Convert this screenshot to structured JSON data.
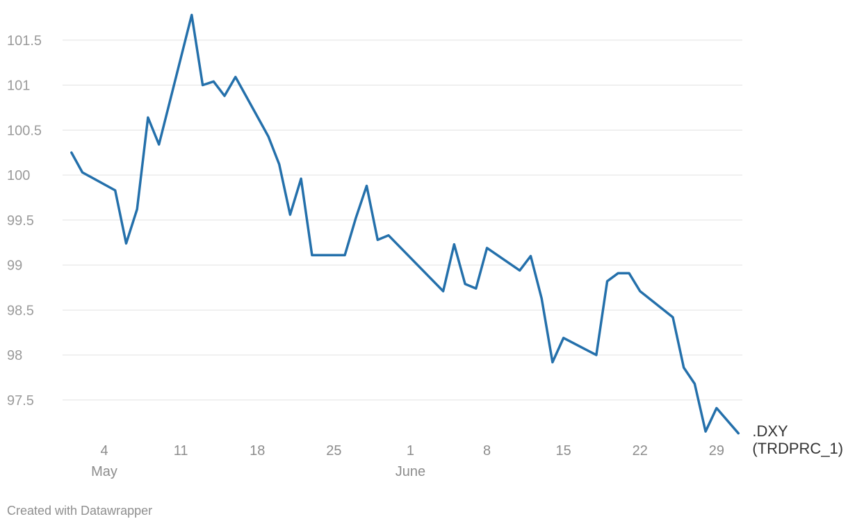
{
  "footer": "Created with Datawrapper",
  "chart_data": {
    "type": "line",
    "title": "",
    "xlabel": "",
    "ylabel": "",
    "grid": true,
    "ylim": [
      97.15,
      101.8
    ],
    "xlim": [
      "2020-05-01",
      "2020-06-30"
    ],
    "y_ticks": [
      "97.5",
      "98",
      "98.5",
      "99",
      "99.5",
      "100",
      "100.5",
      "101",
      "101.5"
    ],
    "x_ticks": [
      {
        "date": "2020-05-04",
        "label": "4",
        "month": "May"
      },
      {
        "date": "2020-05-11",
        "label": "11"
      },
      {
        "date": "2020-05-18",
        "label": "18"
      },
      {
        "date": "2020-05-25",
        "label": "25"
      },
      {
        "date": "2020-06-01",
        "label": "1",
        "month": "June"
      },
      {
        "date": "2020-06-08",
        "label": "8"
      },
      {
        "date": "2020-06-15",
        "label": "15"
      },
      {
        "date": "2020-06-22",
        "label": "22"
      },
      {
        "date": "2020-06-29",
        "label": "29"
      }
    ],
    "series": [
      {
        "name": ".DXY (TRDPRC_1)",
        "label_lines": [
          ".DXY",
          "(TRDPRC_1)"
        ],
        "color": "#2470ab",
        "x": [
          "2020-05-01",
          "2020-05-02",
          "2020-05-05",
          "2020-05-06",
          "2020-05-07",
          "2020-05-08",
          "2020-05-09",
          "2020-05-12",
          "2020-05-13",
          "2020-05-14",
          "2020-05-15",
          "2020-05-16",
          "2020-05-19",
          "2020-05-20",
          "2020-05-21",
          "2020-05-22",
          "2020-05-23",
          "2020-05-26",
          "2020-05-27",
          "2020-05-28",
          "2020-05-29",
          "2020-05-30",
          "2020-06-04",
          "2020-06-05",
          "2020-06-06",
          "2020-06-07",
          "2020-06-08",
          "2020-06-11",
          "2020-06-12",
          "2020-06-13",
          "2020-06-14",
          "2020-06-15",
          "2020-06-18",
          "2020-06-19",
          "2020-06-20",
          "2020-06-21",
          "2020-06-22",
          "2020-06-25",
          "2020-06-26",
          "2020-06-27",
          "2020-06-28",
          "2020-06-29",
          "2020-07-01"
        ],
        "values": [
          100.25,
          100.03,
          99.83,
          99.24,
          99.62,
          100.64,
          100.34,
          101.78,
          101.0,
          101.04,
          100.88,
          101.09,
          100.43,
          100.12,
          99.56,
          99.96,
          99.11,
          99.11,
          99.52,
          99.88,
          99.28,
          99.33,
          98.71,
          99.23,
          98.79,
          98.74,
          99.19,
          98.94,
          99.1,
          98.63,
          97.92,
          98.19,
          98.0,
          98.82,
          98.91,
          98.91,
          98.71,
          98.42,
          97.86,
          97.68,
          97.15,
          97.41,
          97.13
        ]
      }
    ]
  }
}
